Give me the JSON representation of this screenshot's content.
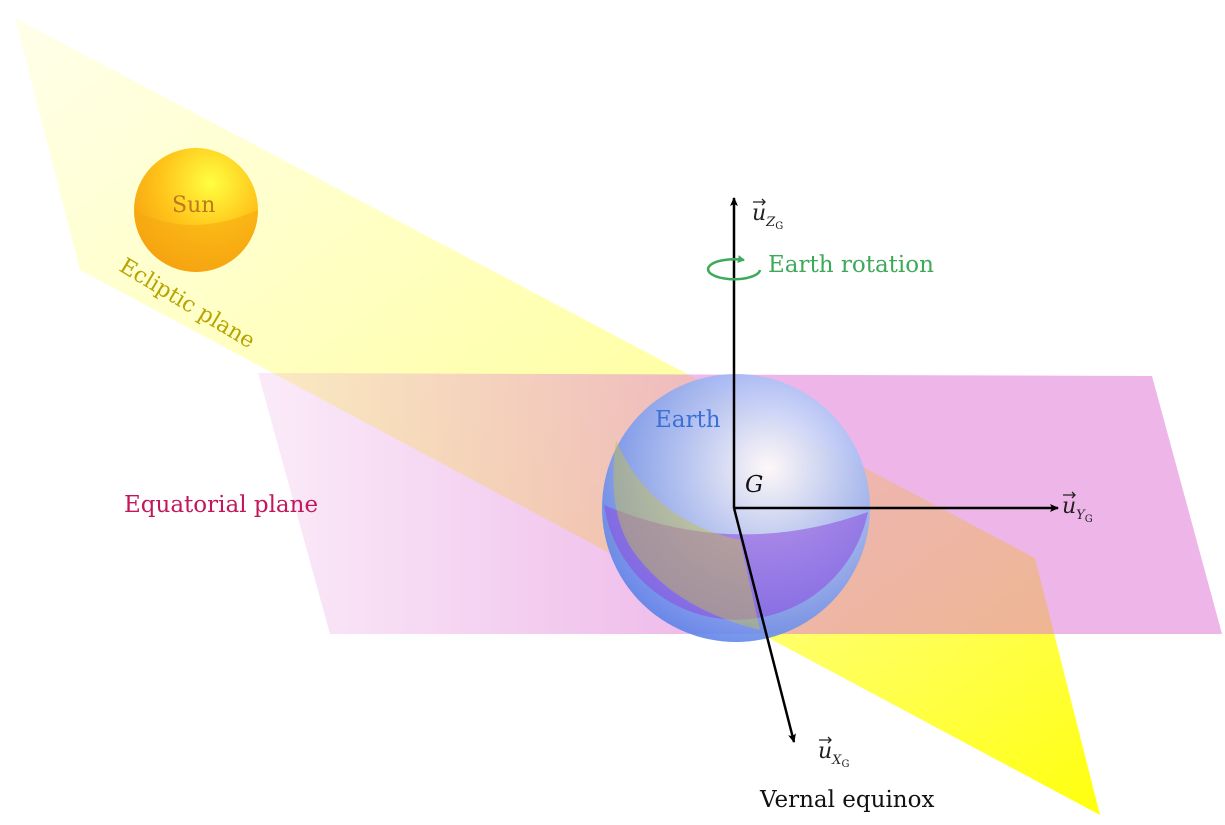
{
  "labels": {
    "sun": "Sun",
    "earth": "Earth",
    "center": "G",
    "ecliptic_plane": "Ecliptic plane",
    "equatorial_plane": "Equatorial plane",
    "earth_rotation": "Earth rotation",
    "vernal_equinox": "Vernal equinox"
  },
  "axes": {
    "z": {
      "base": "u",
      "sub_letter": "Z",
      "sub_index": "G"
    },
    "y": {
      "base": "u",
      "sub_letter": "Y",
      "sub_index": "G"
    },
    "x": {
      "base": "u",
      "sub_letter": "X",
      "sub_index": "G"
    }
  },
  "colors": {
    "ecliptic_fill": "#ffff33",
    "equatorial_fill": "#e07ad6",
    "equatorial_text": "#c2185b",
    "ecliptic_text": "#b8a400",
    "rotation": "#3daa5a",
    "earth_text": "#3b6fd6",
    "sun_text": "#c0781a",
    "axis": "#000000"
  }
}
